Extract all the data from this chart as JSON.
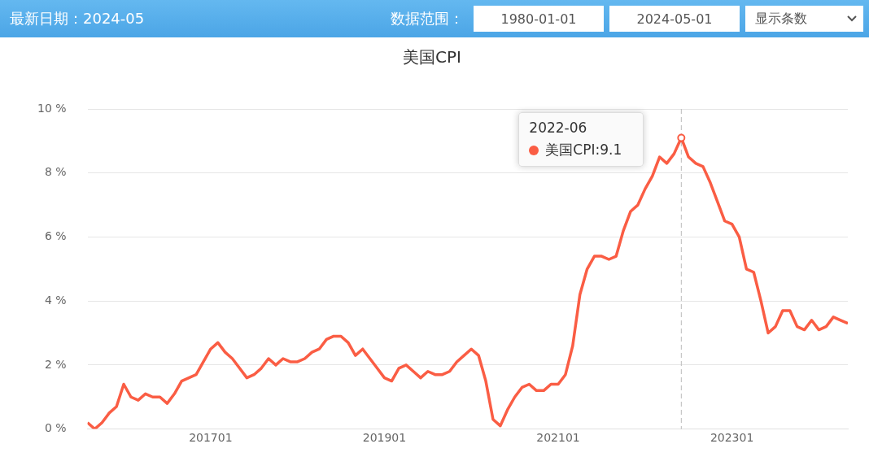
{
  "chart_data": {
    "type": "line",
    "title": "美国CPI",
    "x": [
      "2015-08",
      "2015-09",
      "2015-10",
      "2015-11",
      "2015-12",
      "2016-01",
      "2016-02",
      "2016-03",
      "2016-04",
      "2016-05",
      "2016-06",
      "2016-07",
      "2016-08",
      "2016-09",
      "2016-10",
      "2016-11",
      "2016-12",
      "2017-01",
      "2017-02",
      "2017-03",
      "2017-04",
      "2017-05",
      "2017-06",
      "2017-07",
      "2017-08",
      "2017-09",
      "2017-10",
      "2017-11",
      "2017-12",
      "2018-01",
      "2018-02",
      "2018-03",
      "2018-04",
      "2018-05",
      "2018-06",
      "2018-07",
      "2018-08",
      "2018-09",
      "2018-10",
      "2018-11",
      "2018-12",
      "2019-01",
      "2019-02",
      "2019-03",
      "2019-04",
      "2019-05",
      "2019-06",
      "2019-07",
      "2019-08",
      "2019-09",
      "2019-10",
      "2019-11",
      "2019-12",
      "2020-01",
      "2020-02",
      "2020-03",
      "2020-04",
      "2020-05",
      "2020-06",
      "2020-07",
      "2020-08",
      "2020-09",
      "2020-10",
      "2020-11",
      "2020-12",
      "2021-01",
      "2021-02",
      "2021-03",
      "2021-04",
      "2021-05",
      "2021-06",
      "2021-07",
      "2021-08",
      "2021-09",
      "2021-10",
      "2021-11",
      "2021-12",
      "2022-01",
      "2022-02",
      "2022-03",
      "2022-04",
      "2022-05",
      "2022-06",
      "2022-07",
      "2022-08",
      "2022-09",
      "2022-10",
      "2022-11",
      "2022-12",
      "2023-01",
      "2023-02",
      "2023-03",
      "2023-04",
      "2023-05",
      "2023-06",
      "2023-07",
      "2023-08",
      "2023-09",
      "2023-10",
      "2023-11",
      "2023-12",
      "2024-01",
      "2024-02",
      "2024-03",
      "2024-04",
      "2024-05"
    ],
    "series": [
      {
        "color": "#fa5d44",
        "values": [
          0.2,
          0.0,
          0.2,
          0.5,
          0.7,
          1.4,
          1.0,
          0.9,
          1.1,
          1.0,
          1.0,
          0.8,
          1.1,
          1.5,
          1.6,
          1.7,
          2.1,
          2.5,
          2.7,
          2.4,
          2.2,
          1.9,
          1.6,
          1.7,
          1.9,
          2.2,
          2.0,
          2.2,
          2.1,
          2.1,
          2.2,
          2.4,
          2.5,
          2.8,
          2.9,
          2.9,
          2.7,
          2.3,
          2.5,
          2.2,
          1.9,
          1.6,
          1.5,
          1.9,
          2.0,
          1.8,
          1.6,
          1.8,
          1.7,
          1.7,
          1.8,
          2.1,
          2.3,
          2.5,
          2.3,
          1.5,
          0.3,
          0.1,
          0.6,
          1.0,
          1.3,
          1.4,
          1.2,
          1.2,
          1.4,
          1.4,
          1.7,
          2.6,
          4.2,
          5.0,
          5.4,
          5.4,
          5.3,
          5.4,
          6.2,
          6.8,
          7.0,
          7.5,
          7.9,
          8.5,
          8.3,
          8.6,
          9.1,
          8.5,
          8.3,
          8.2,
          7.7,
          7.1,
          6.5,
          6.4,
          6.0,
          5.0,
          4.9,
          4.0,
          3.0,
          3.2,
          3.7,
          3.7,
          3.2,
          3.1,
          3.4,
          3.1,
          3.2,
          3.5,
          3.4,
          3.3
        ]
      }
    ],
    "xlim": [
      "2015-08",
      "2024-05"
    ],
    "xticks": [
      {
        "value": "2017-01",
        "label": "201701"
      },
      {
        "value": "2019-01",
        "label": "201901"
      },
      {
        "value": "2021-01",
        "label": "202101"
      },
      {
        "value": "2023-01",
        "label": "202301"
      }
    ],
    "ylim": [
      0,
      10
    ],
    "yticks": [
      {
        "value": 0,
        "label": "0 %"
      },
      {
        "value": 2,
        "label": "2 %"
      },
      {
        "value": 4,
        "label": "4 %"
      },
      {
        "value": 6,
        "label": "6 %"
      },
      {
        "value": 8,
        "label": "8 %"
      },
      {
        "value": 10,
        "label": "10 %"
      }
    ],
    "grid": "y",
    "legend": false,
    "marker": "none",
    "line_style": "solid",
    "ref_lines": [
      {
        "axis": "x",
        "value": "2022-06",
        "color": "#bbbbbb",
        "line_style": "dashed"
      }
    ],
    "annotations": [
      "最新日期：2024-05",
      "数据范围：",
      "1980-01-01",
      "2024-05-01",
      "显示条数",
      "2022-06",
      "美国CPI:9.1"
    ]
  }
}
